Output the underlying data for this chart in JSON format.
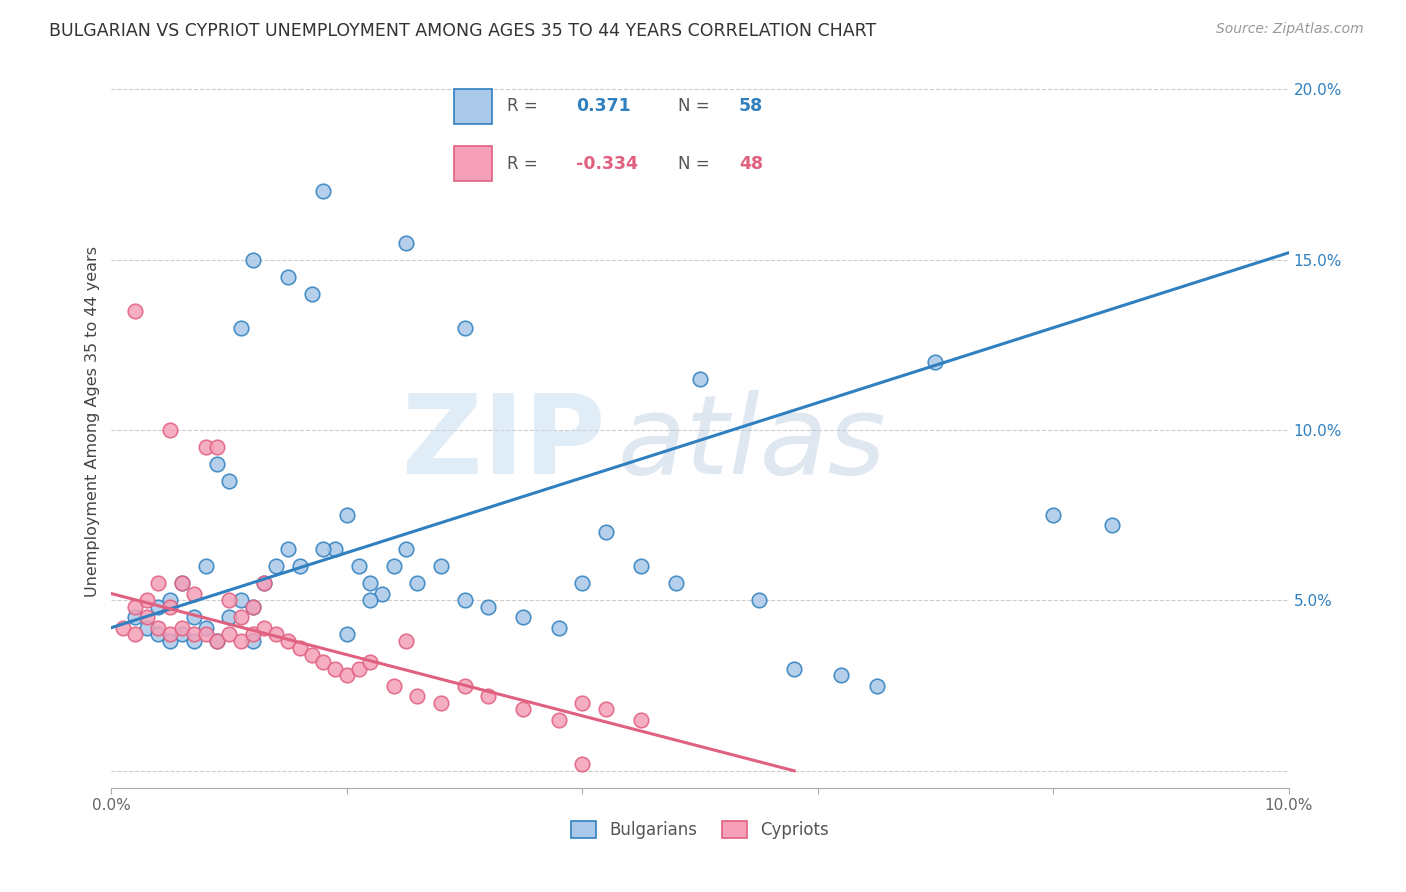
{
  "title": "BULGARIAN VS CYPRIOT UNEMPLOYMENT AMONG AGES 35 TO 44 YEARS CORRELATION CHART",
  "source": "Source: ZipAtlas.com",
  "ylabel": "Unemployment Among Ages 35 to 44 years",
  "xlim": [
    0.0,
    0.1
  ],
  "ylim": [
    -0.005,
    0.21
  ],
  "bg_color": "#ffffff",
  "grid_color": "#cccccc",
  "bulgarian_color": "#aac8e8",
  "cypriot_color": "#f5a0b8",
  "blue_line_color": "#3080c0",
  "pink_line_color": "#e06080",
  "R_bulgarian": "0.371",
  "N_bulgarian": "58",
  "R_cypriot": "-0.334",
  "N_cypriot": "48",
  "watermark_zip_color": "#c8ddf0",
  "watermark_atlas_color": "#b8cce0",
  "blue_tick_color": "#3080c0",
  "bulgarians_x": [
    0.002,
    0.003,
    0.004,
    0.004,
    0.005,
    0.005,
    0.006,
    0.006,
    0.007,
    0.007,
    0.008,
    0.008,
    0.009,
    0.009,
    0.01,
    0.01,
    0.011,
    0.011,
    0.012,
    0.012,
    0.013,
    0.014,
    0.015,
    0.015,
    0.016,
    0.017,
    0.018,
    0.019,
    0.02,
    0.021,
    0.022,
    0.023,
    0.024,
    0.025,
    0.026,
    0.028,
    0.03,
    0.032,
    0.035,
    0.038,
    0.04,
    0.042,
    0.045,
    0.048,
    0.05,
    0.055,
    0.058,
    0.062,
    0.065,
    0.07,
    0.08,
    0.085,
    0.012,
    0.02,
    0.025,
    0.03,
    0.018,
    0.022
  ],
  "bulgarians_y": [
    0.045,
    0.042,
    0.04,
    0.048,
    0.038,
    0.05,
    0.04,
    0.055,
    0.038,
    0.045,
    0.042,
    0.06,
    0.038,
    0.09,
    0.045,
    0.085,
    0.05,
    0.13,
    0.048,
    0.15,
    0.055,
    0.06,
    0.065,
    0.145,
    0.06,
    0.14,
    0.17,
    0.065,
    0.075,
    0.06,
    0.055,
    0.052,
    0.06,
    0.065,
    0.055,
    0.06,
    0.05,
    0.048,
    0.045,
    0.042,
    0.055,
    0.07,
    0.06,
    0.055,
    0.115,
    0.05,
    0.03,
    0.028,
    0.025,
    0.12,
    0.075,
    0.072,
    0.038,
    0.04,
    0.155,
    0.13,
    0.065,
    0.05
  ],
  "cypriots_x": [
    0.001,
    0.002,
    0.002,
    0.003,
    0.003,
    0.004,
    0.004,
    0.005,
    0.005,
    0.006,
    0.006,
    0.007,
    0.007,
    0.008,
    0.008,
    0.009,
    0.009,
    0.01,
    0.01,
    0.011,
    0.011,
    0.012,
    0.012,
    0.013,
    0.013,
    0.014,
    0.015,
    0.016,
    0.017,
    0.018,
    0.019,
    0.02,
    0.021,
    0.022,
    0.024,
    0.025,
    0.026,
    0.028,
    0.03,
    0.032,
    0.035,
    0.038,
    0.04,
    0.042,
    0.045,
    0.002,
    0.005,
    0.04
  ],
  "cypriots_y": [
    0.042,
    0.04,
    0.048,
    0.045,
    0.05,
    0.042,
    0.055,
    0.04,
    0.048,
    0.042,
    0.055,
    0.04,
    0.052,
    0.04,
    0.095,
    0.038,
    0.095,
    0.04,
    0.05,
    0.038,
    0.045,
    0.04,
    0.048,
    0.042,
    0.055,
    0.04,
    0.038,
    0.036,
    0.034,
    0.032,
    0.03,
    0.028,
    0.03,
    0.032,
    0.025,
    0.038,
    0.022,
    0.02,
    0.025,
    0.022,
    0.018,
    0.015,
    0.02,
    0.018,
    0.015,
    0.135,
    0.1,
    0.002
  ],
  "blue_line_x": [
    0.0,
    0.1
  ],
  "blue_line_y": [
    0.042,
    0.152
  ],
  "pink_line_x": [
    0.0,
    0.058
  ],
  "pink_line_y": [
    0.052,
    0.0
  ]
}
